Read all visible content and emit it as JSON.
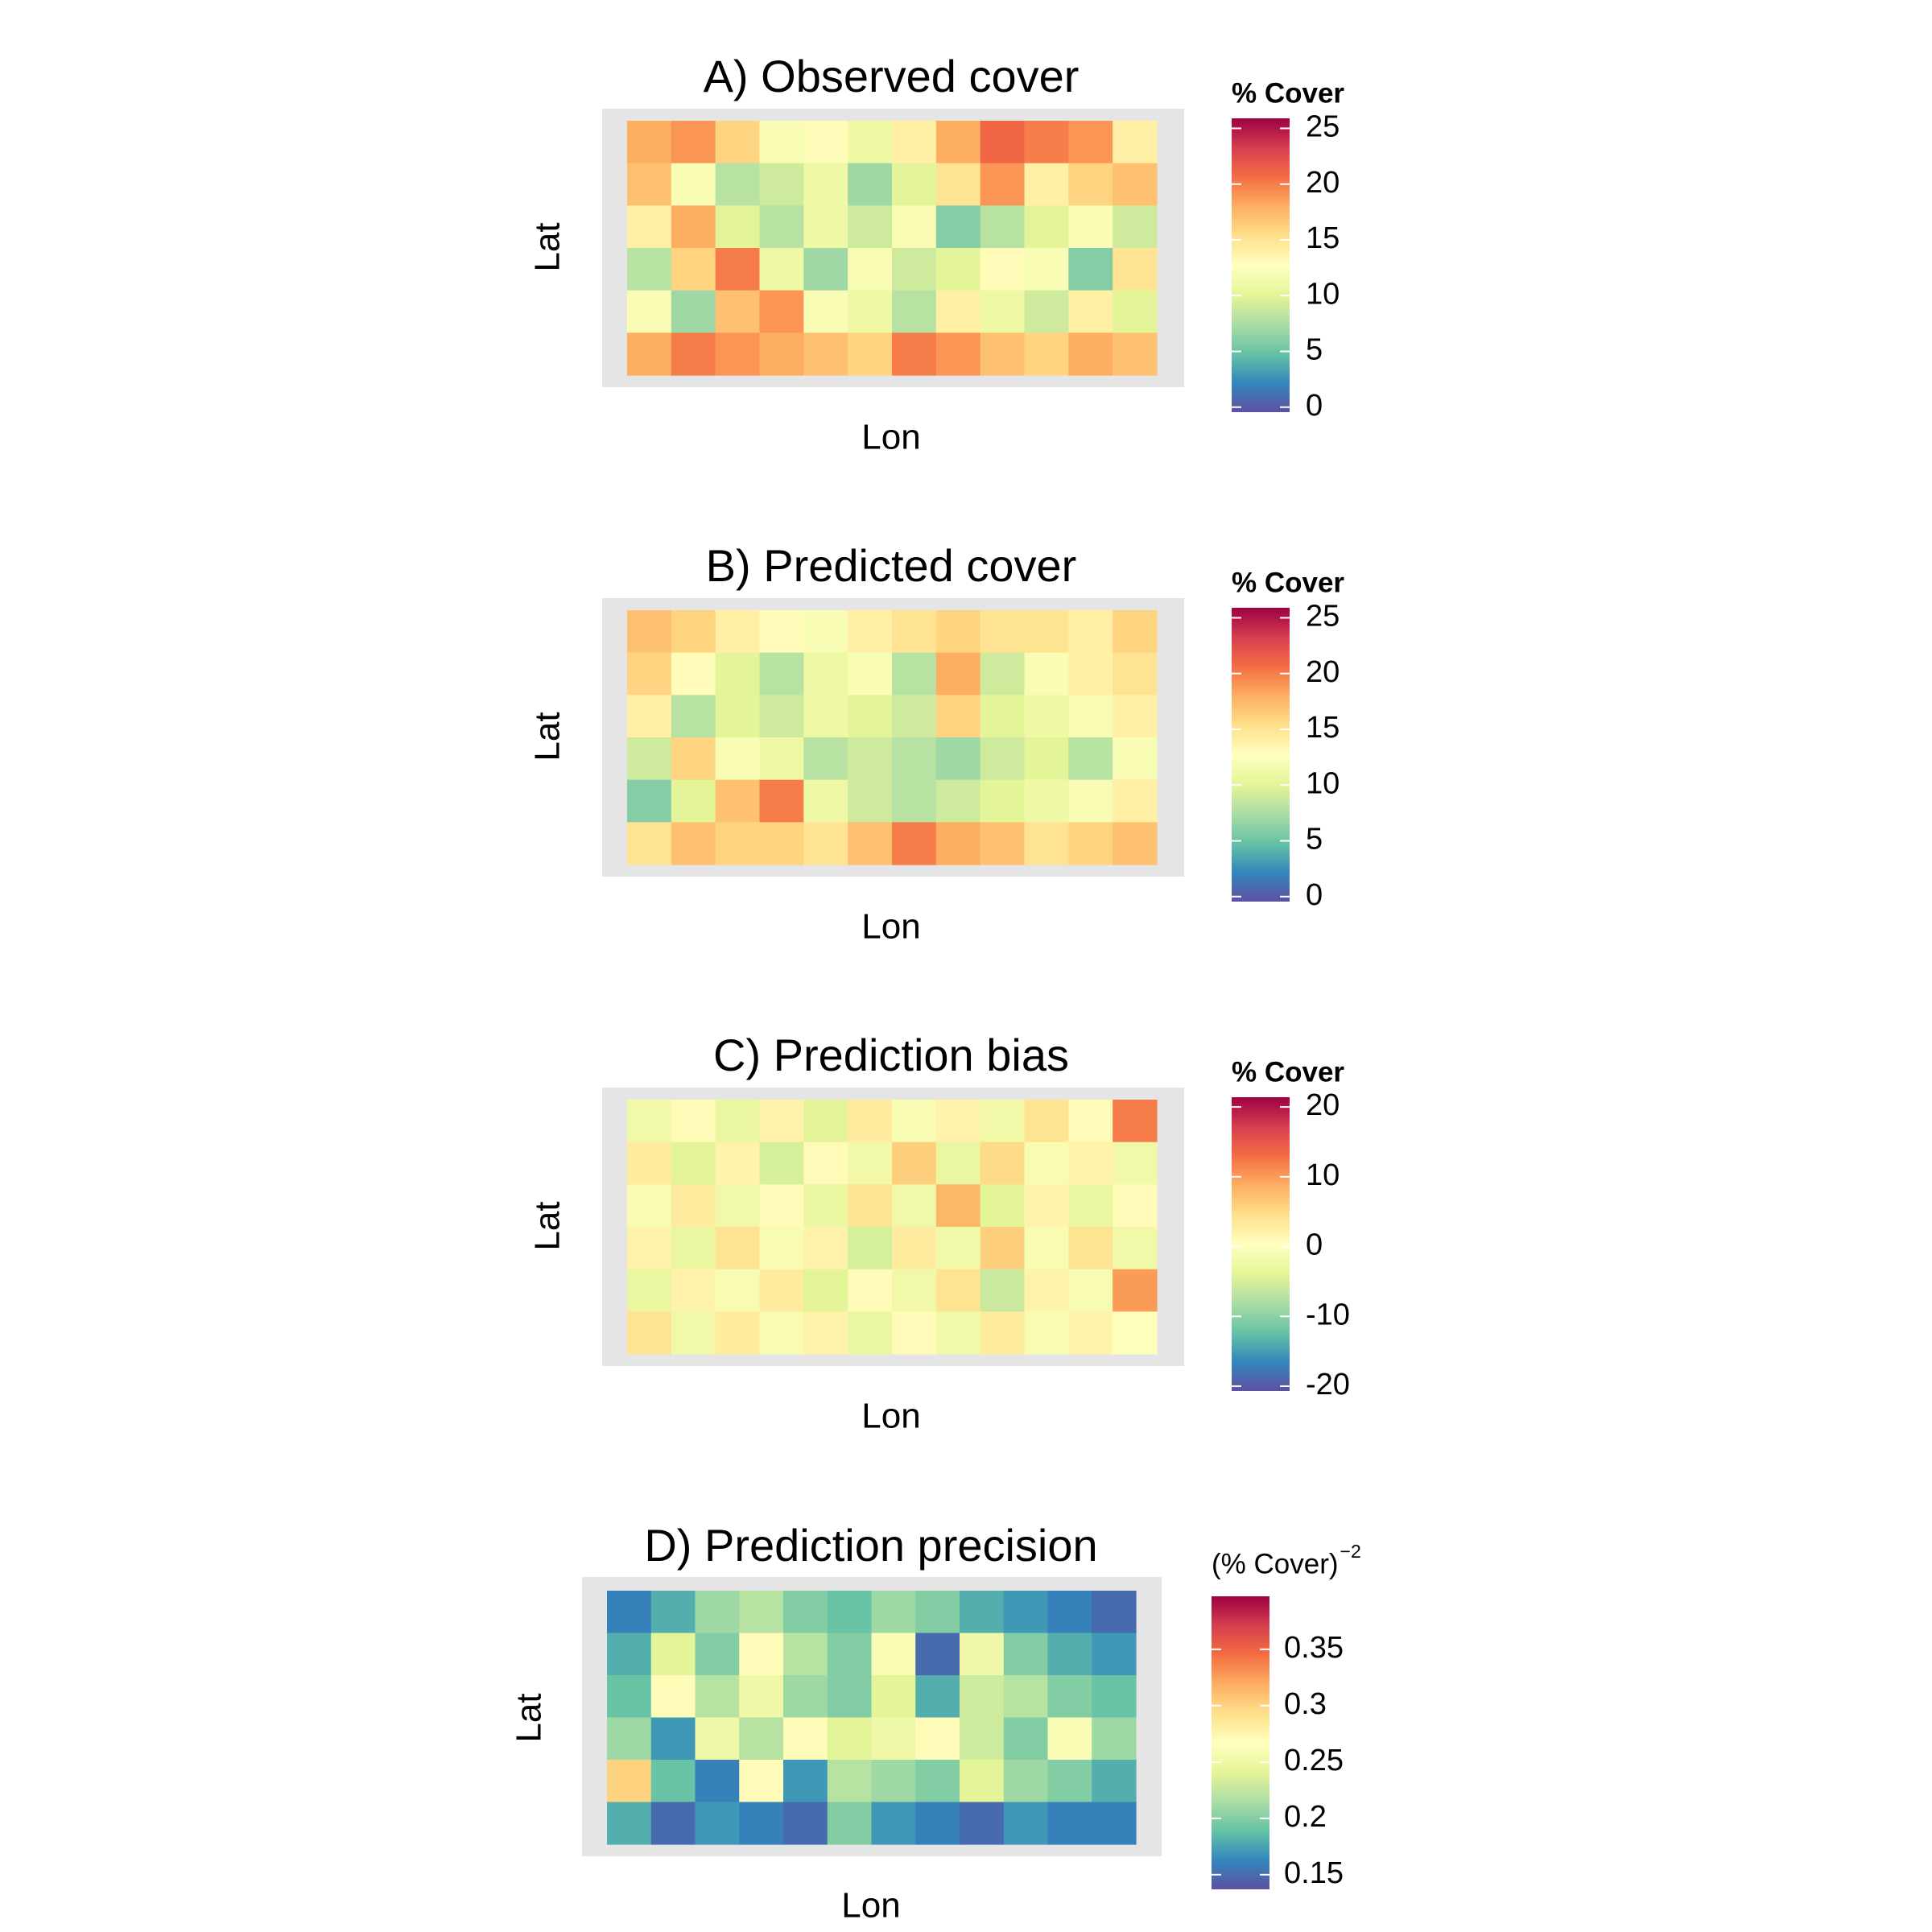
{
  "chart_data": [
    {
      "type": "heatmap",
      "title": "A) Observed cover",
      "xlabel": "Lon",
      "ylabel": "Lat",
      "legend_title": "% Cover",
      "colorbar_lim": [
        -0.45,
        25.9
      ],
      "colorbar_ticks": [
        0,
        5,
        10,
        15,
        20,
        25
      ],
      "palette": [
        "#5E4FA2",
        "#3288BD",
        "#66C2A5",
        "#ABDDA4",
        "#E6F598",
        "#FFFFBF",
        "#FEE08B",
        "#FDAE61",
        "#F46D43",
        "#D53E4F",
        "#9E0142"
      ],
      "z": [
        [
          18,
          19,
          16,
          12,
          13,
          11,
          14,
          18,
          21,
          20,
          19,
          14
        ],
        [
          17,
          12,
          8,
          9,
          11,
          7,
          10,
          15,
          19,
          14,
          16,
          17
        ],
        [
          14,
          18,
          10,
          8,
          11,
          9,
          12,
          6,
          8,
          10,
          12,
          9
        ],
        [
          8,
          16,
          20,
          11,
          7,
          12,
          9,
          10,
          13,
          12,
          6,
          15
        ],
        [
          12,
          7,
          17,
          19,
          12,
          11,
          8,
          14,
          11,
          9,
          14,
          10
        ],
        [
          18,
          20,
          19,
          18,
          17,
          16,
          20,
          19,
          17,
          16,
          18,
          17
        ]
      ]
    },
    {
      "type": "heatmap",
      "title": "B) Predicted cover",
      "xlabel": "Lon",
      "ylabel": "Lat",
      "legend_title": "% Cover",
      "colorbar_lim": [
        -0.45,
        25.9
      ],
      "colorbar_ticks": [
        0,
        5,
        10,
        15,
        20,
        25
      ],
      "palette": [
        "#5E4FA2",
        "#3288BD",
        "#66C2A5",
        "#ABDDA4",
        "#E6F598",
        "#FFFFBF",
        "#FEE08B",
        "#FDAE61",
        "#F46D43",
        "#D53E4F",
        "#9E0142"
      ],
      "z": [
        [
          17,
          16,
          14,
          13,
          12,
          14,
          15,
          16,
          15,
          15,
          14,
          16
        ],
        [
          16,
          13,
          10,
          8,
          11,
          12,
          8,
          18,
          9,
          12,
          14,
          15
        ],
        [
          14,
          8,
          10,
          9,
          11,
          10,
          9,
          16,
          10,
          11,
          12,
          14
        ],
        [
          9,
          16,
          12,
          11,
          8,
          9,
          8,
          7,
          9,
          10,
          8,
          12
        ],
        [
          6,
          10,
          17,
          20,
          11,
          9,
          8,
          9,
          10,
          11,
          12,
          14
        ],
        [
          15,
          17,
          16,
          16,
          15,
          17,
          20,
          18,
          17,
          15,
          16,
          17
        ]
      ]
    },
    {
      "type": "heatmap",
      "title": "C) Prediction bias",
      "xlabel": "Lon",
      "ylabel": "Lat",
      "legend_title": "% Cover",
      "colorbar_lim": [
        -20.7,
        21.4
      ],
      "colorbar_ticks": [
        -20,
        -10,
        0,
        10,
        20
      ],
      "palette": [
        "#5E4FA2",
        "#3288BD",
        "#66C2A5",
        "#ABDDA4",
        "#E6F598",
        "#FFFFBF",
        "#FEE08B",
        "#FDAE61",
        "#F46D43",
        "#D53E4F",
        "#9E0142"
      ],
      "z": [
        [
          -2,
          1,
          -3,
          2,
          -4,
          3,
          -1,
          2,
          -2,
          4,
          1,
          12
        ],
        [
          3,
          -4,
          2,
          -5,
          1,
          -2,
          6,
          -3,
          5,
          -1,
          2,
          -2
        ],
        [
          -1,
          3,
          -2,
          1,
          -3,
          4,
          -2,
          8,
          -4,
          2,
          -3,
          1
        ],
        [
          2,
          -3,
          4,
          -1,
          2,
          -5,
          3,
          -2,
          6,
          -1,
          4,
          -2
        ],
        [
          -3,
          2,
          -1,
          3,
          -4,
          1,
          -2,
          4,
          -6,
          2,
          -1,
          10
        ],
        [
          4,
          -2,
          3,
          -1,
          2,
          -3,
          1,
          -2,
          3,
          -1,
          2,
          0
        ]
      ]
    },
    {
      "type": "heatmap",
      "title": "D) Prediction precision",
      "xlabel": "Lon",
      "ylabel": "Lat",
      "legend_title": "(% Cover)",
      "legend_title_exponent": "−2",
      "colorbar_lim": [
        0.137,
        0.397
      ],
      "colorbar_ticks": [
        0.15,
        0.2,
        0.25,
        0.3,
        0.35
      ],
      "palette": [
        "#5E4FA2",
        "#3288BD",
        "#66C2A5",
        "#ABDDA4",
        "#E6F598",
        "#FFFFBF",
        "#FEE08B",
        "#FDAE61",
        "#F46D43",
        "#D53E4F",
        "#9E0142"
      ],
      "z": [
        [
          0.16,
          0.18,
          0.21,
          0.22,
          0.2,
          0.19,
          0.21,
          0.2,
          0.18,
          0.17,
          0.16,
          0.15
        ],
        [
          0.18,
          0.24,
          0.2,
          0.27,
          0.22,
          0.2,
          0.26,
          0.15,
          0.25,
          0.2,
          0.18,
          0.17
        ],
        [
          0.19,
          0.27,
          0.22,
          0.25,
          0.21,
          0.2,
          0.24,
          0.18,
          0.23,
          0.22,
          0.2,
          0.19
        ],
        [
          0.21,
          0.17,
          0.25,
          0.22,
          0.27,
          0.24,
          0.25,
          0.27,
          0.23,
          0.2,
          0.26,
          0.21
        ],
        [
          0.3,
          0.19,
          0.16,
          0.27,
          0.17,
          0.22,
          0.21,
          0.2,
          0.24,
          0.21,
          0.2,
          0.18
        ],
        [
          0.18,
          0.15,
          0.17,
          0.16,
          0.15,
          0.2,
          0.17,
          0.16,
          0.15,
          0.17,
          0.16,
          0.16
        ]
      ]
    }
  ]
}
